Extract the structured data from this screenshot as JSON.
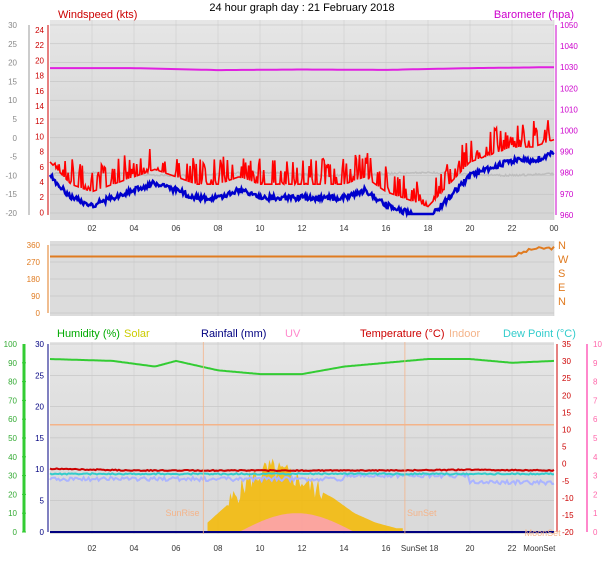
{
  "title": "24 hour graph day : 21 February 2018",
  "colors": {
    "wind": "#ff0000",
    "gust_avg": "#0000cc",
    "gust_grey": "#bdbdbd",
    "baro": "#e020e0",
    "dir": "#e07b20",
    "hum": "#33cc33",
    "solar": "#f5b800",
    "rain": "#000080",
    "uv": "#ff9ad5",
    "temp": "#cc0000",
    "indoor": "#f4b48a",
    "dew": "#33cccc",
    "dewlight": "#aab4ff",
    "panel": "#d4d4d4"
  },
  "chart_data": [
    {
      "type": "line",
      "title": "24 hour graph day : 21 February 2018",
      "legend": [
        {
          "label": "Windspeed (kts)",
          "color": "#cc0000"
        },
        {
          "label": "Barometer (hpa)",
          "color": "#cc00cc"
        }
      ],
      "x_ticks": [
        "02",
        "04",
        "06",
        "08",
        "10",
        "12",
        "14",
        "16",
        "18",
        "20",
        "22",
        "00"
      ],
      "y_left_ticks": [
        "30",
        "25",
        "20",
        "15",
        "10",
        "5",
        "0",
        "-5",
        "-10",
        "-15",
        "-20"
      ],
      "y_left_inner_ticks": [
        "24",
        "22",
        "20",
        "18",
        "16",
        "14",
        "12",
        "10",
        "8",
        "6",
        "4",
        "2",
        "0"
      ],
      "y_right_ticks": [
        "1050",
        "1040",
        "1030",
        "1020",
        "1010",
        "1000",
        "990",
        "980",
        "970",
        "960"
      ],
      "ylim_wind": [
        0,
        25
      ],
      "ylim_baro": [
        955,
        1050
      ],
      "series": [
        {
          "name": "Windspeed (kts)",
          "color": "#ff0000",
          "x": [
            0,
            1,
            2,
            3,
            4,
            5,
            6,
            7,
            8,
            9,
            10,
            11,
            12,
            13,
            14,
            15,
            16,
            17,
            18,
            19,
            20,
            21,
            22,
            23,
            24
          ],
          "values": [
            7,
            4,
            3,
            4,
            5,
            6,
            5,
            4,
            4,
            5,
            4,
            4,
            4,
            4,
            4,
            5,
            3,
            2,
            1,
            4,
            7,
            8,
            9,
            9,
            10
          ]
        },
        {
          "name": "Barometer (hpa)",
          "color": "#e020e0",
          "x": [
            0,
            4,
            8,
            12,
            16,
            20,
            24
          ],
          "values": [
            1029.5,
            1029.5,
            1028.5,
            1028.8,
            1028.6,
            1029.5,
            1030
          ]
        }
      ]
    },
    {
      "type": "line",
      "legend": [
        {
          "label": "N"
        },
        {
          "label": "W"
        },
        {
          "label": "S"
        },
        {
          "label": "E"
        },
        {
          "label": "N"
        }
      ],
      "y_ticks": [
        "360",
        "270",
        "180",
        "90",
        "0"
      ],
      "ylim": [
        0,
        360
      ],
      "series": [
        {
          "name": "Wind Direction",
          "color": "#e07b20",
          "x": [
            0,
            4,
            8,
            12,
            16,
            20,
            22,
            22.5,
            23,
            24
          ],
          "values": [
            300,
            300,
            300,
            300,
            300,
            300,
            300,
            320,
            340,
            345
          ]
        }
      ]
    },
    {
      "type": "line",
      "legend": [
        {
          "label": "Humidity (%)",
          "color": "#00aa00"
        },
        {
          "label": "Solar",
          "color": "#cccc00"
        },
        {
          "label": "Rainfall (mm)",
          "color": "#000080"
        },
        {
          "label": "UV",
          "color": "#ff88cc"
        },
        {
          "label": "Temperature (°C)",
          "color": "#cc0000"
        },
        {
          "label": "Indoor",
          "color": "#f4b48a"
        },
        {
          "label": "Dew Point (°C)",
          "color": "#33cccc"
        }
      ],
      "x_ticks": [
        "02",
        "04",
        "06",
        "08",
        "10",
        "12",
        "14",
        "16",
        "18",
        "20",
        "22"
      ],
      "y_left_ticks": [
        "100",
        "90",
        "80",
        "70",
        "60",
        "50",
        "40",
        "30",
        "20",
        "10",
        "0"
      ],
      "y_inner_ticks": [
        "30",
        "25",
        "20",
        "15",
        "10",
        "5",
        "0"
      ],
      "y_right_ticks": [
        "35",
        "30",
        "25",
        "20",
        "15",
        "10",
        "5",
        "0",
        "-5",
        "-10",
        "-15",
        "-20"
      ],
      "y_far_right_ticks": [
        "10",
        "9",
        "8",
        "7",
        "6",
        "5",
        "4",
        "3",
        "2",
        "1",
        "0"
      ],
      "markers": [
        "SunRise",
        "SunSet",
        "MoonSet",
        "SunSet 18",
        "MoonSet"
      ],
      "series": [
        {
          "name": "Humidity (%)",
          "color": "#33cc33",
          "x": [
            0,
            3,
            5,
            6,
            8,
            10,
            12,
            14,
            16,
            18,
            20,
            22,
            24
          ],
          "values": [
            92,
            91,
            88,
            91,
            86,
            84,
            84,
            88,
            90,
            92,
            92,
            90,
            91
          ]
        },
        {
          "name": "Temperature (°C)",
          "color": "#cc0000",
          "x": [
            0,
            4,
            8,
            12,
            16,
            20,
            24
          ],
          "values": [
            -1.5,
            -2,
            -2,
            -2,
            -2,
            -1.8,
            -2
          ]
        },
        {
          "name": "Dew Point (°C)",
          "color": "#33cccc",
          "x": [
            0,
            4,
            8,
            12,
            16,
            20,
            24
          ],
          "values": [
            -3,
            -3,
            -3,
            -3,
            -3,
            -3,
            -3
          ]
        },
        {
          "name": "Indoor",
          "color": "#f4b48a",
          "x": [
            0,
            24
          ],
          "values": [
            17,
            17
          ]
        },
        {
          "name": "Solar",
          "color": "#f5b800",
          "x": [
            7.5,
            8.5,
            9.5,
            10.5,
            11.5,
            12.5,
            13.5,
            14.5,
            15.5,
            16.5
          ],
          "values": [
            0.5,
            1.5,
            2.8,
            3.4,
            3.0,
            2.4,
            1.8,
            1.0,
            0.5,
            0.2
          ]
        }
      ]
    }
  ]
}
